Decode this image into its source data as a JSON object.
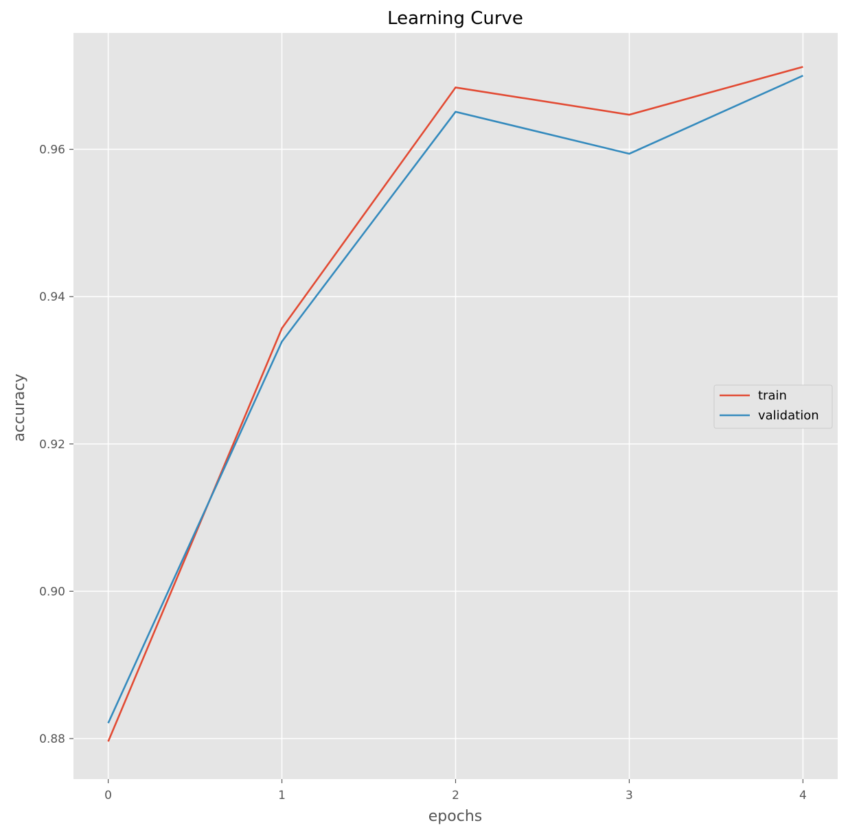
{
  "chart_data": {
    "type": "line",
    "title": "Learning Curve",
    "xlabel": "epochs",
    "ylabel": "accuracy",
    "x": [
      0,
      1,
      2,
      3,
      4
    ],
    "xticks": [
      0,
      1,
      2,
      3,
      4
    ],
    "yticks": [
      0.88,
      0.9,
      0.92,
      0.94,
      0.96
    ],
    "ytick_labels": [
      "0.88",
      "0.90",
      "0.92",
      "0.94",
      "0.96"
    ],
    "xlim": [
      -0.2,
      4.2
    ],
    "ylim": [
      0.8745,
      0.9758
    ],
    "grid": true,
    "legend_position": "center-right",
    "series": [
      {
        "name": "train",
        "color": "#E24A33",
        "values": [
          0.8796,
          0.9357,
          0.9684,
          0.9647,
          0.9712
        ]
      },
      {
        "name": "validation",
        "color": "#348ABD",
        "values": [
          0.8821,
          0.9339,
          0.9651,
          0.9594,
          0.97
        ]
      }
    ],
    "colors": {
      "plot_background": "#E5E5E5",
      "grid": "#FFFFFF",
      "text": "#555555"
    }
  }
}
